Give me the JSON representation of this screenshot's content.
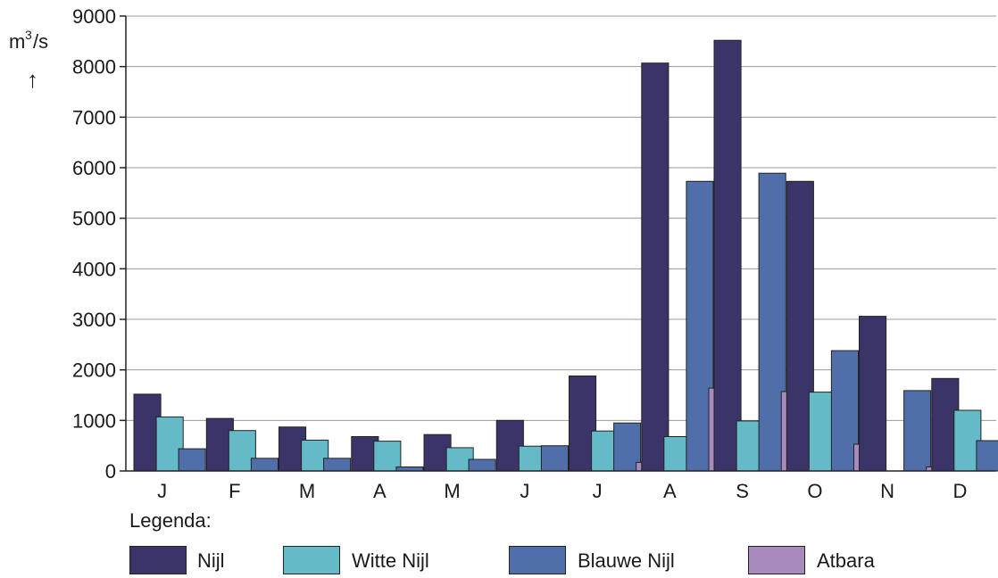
{
  "chart_data": {
    "type": "bar",
    "ylabel": "m³/s",
    "ylabel_base": "m",
    "ylabel_sup": "3",
    "ylabel_tail": "/s",
    "ylabel_arrow": "↑",
    "ylim": [
      0,
      9000
    ],
    "yticks": [
      0,
      1000,
      2000,
      3000,
      4000,
      5000,
      6000,
      7000,
      8000,
      9000
    ],
    "grid": true,
    "categories": [
      "J",
      "F",
      "M",
      "A",
      "M",
      "J",
      "J",
      "A",
      "S",
      "O",
      "N",
      "D"
    ],
    "series": [
      {
        "name": "Nijl",
        "color": "#3b3468",
        "values": [
          1520,
          1040,
          870,
          680,
          720,
          1000,
          1880,
          8070,
          8520,
          5730,
          3060,
          1830
        ]
      },
      {
        "name": "Witte Nijl",
        "color": "#64bac6",
        "values": [
          1070,
          800,
          610,
          590,
          460,
          490,
          790,
          680,
          990,
          1560,
          0,
          1200
        ]
      },
      {
        "name": "Blauwe Nijl",
        "color": "#506faa",
        "values": [
          440,
          250,
          250,
          80,
          230,
          500,
          950,
          5730,
          5890,
          2380,
          1590,
          600
        ]
      },
      {
        "name": "Atbara",
        "color": "#a88abd",
        "values": [
          0,
          0,
          0,
          0,
          0,
          0,
          170,
          1640,
          1570,
          530,
          80,
          0
        ]
      }
    ],
    "legend_title": "Legenda:",
    "legend_placement": "bottom"
  }
}
